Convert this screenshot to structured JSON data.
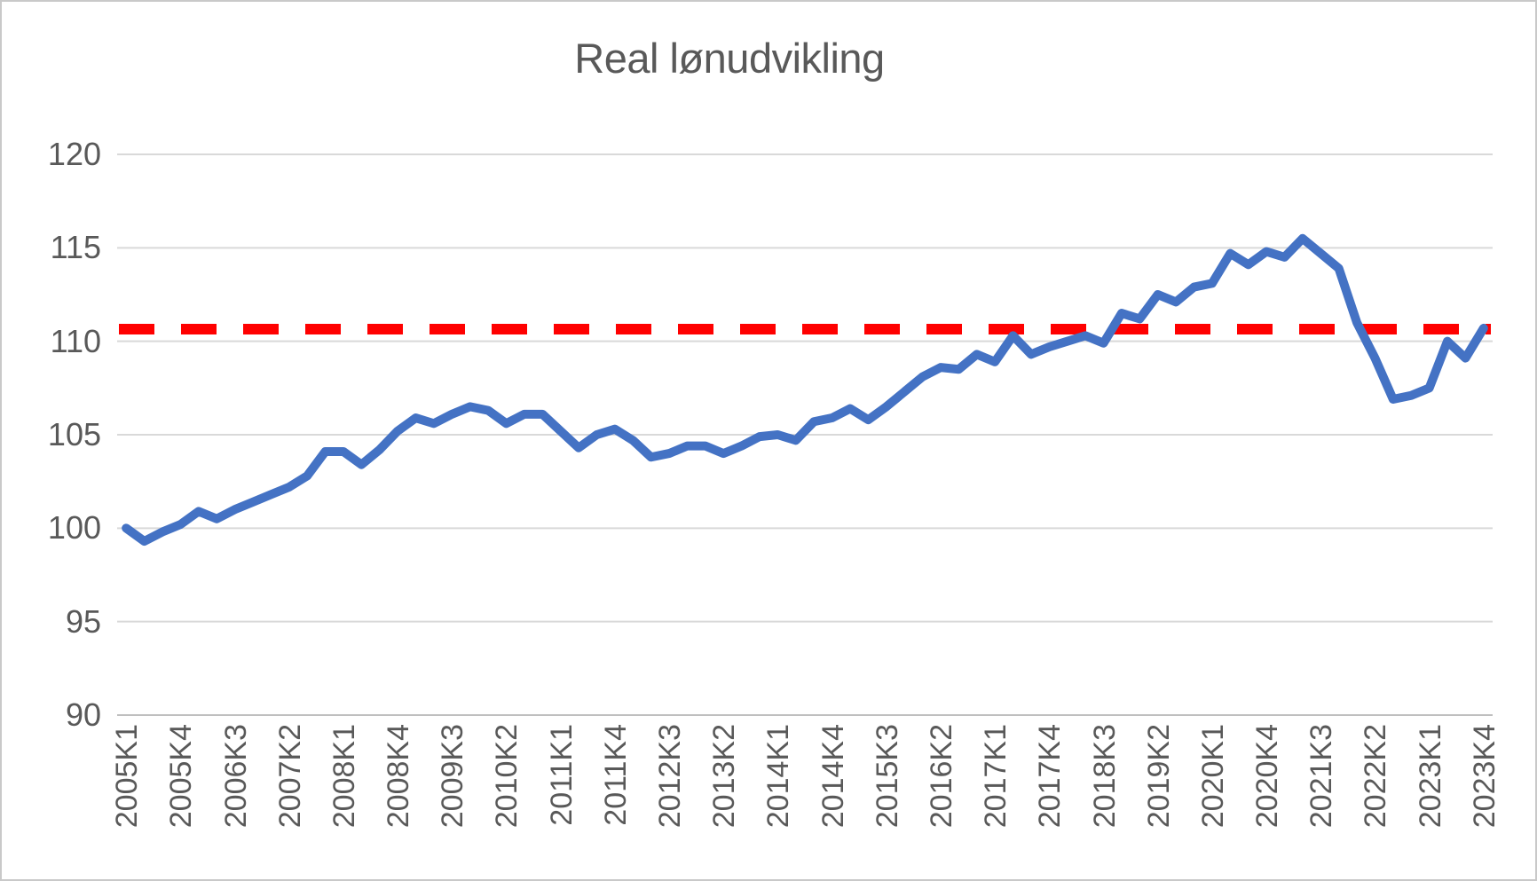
{
  "chart_data": {
    "type": "line",
    "title": "Real lønudvikling",
    "categories": [
      "2005K1",
      "2005K2",
      "2005K3",
      "2005K4",
      "2006K1",
      "2006K2",
      "2006K3",
      "2006K4",
      "2007K1",
      "2007K2",
      "2007K3",
      "2007K4",
      "2008K1",
      "2008K2",
      "2008K3",
      "2008K4",
      "2009K1",
      "2009K2",
      "2009K3",
      "2009K4",
      "2010K1",
      "2010K2",
      "2010K3",
      "2010K4",
      "2011K1",
      "2011K2",
      "2011K3",
      "2011K4",
      "2012K1",
      "2012K2",
      "2012K3",
      "2012K4",
      "2013K1",
      "2013K2",
      "2013K3",
      "2013K4",
      "2014K1",
      "2014K2",
      "2014K3",
      "2014K4",
      "2015K1",
      "2015K2",
      "2015K3",
      "2015K4",
      "2016K1",
      "2016K2",
      "2016K3",
      "2016K4",
      "2017K1",
      "2017K2",
      "2017K3",
      "2017K4",
      "2018K1",
      "2018K2",
      "2018K3",
      "2018K4",
      "2019K1",
      "2019K2",
      "2019K3",
      "2019K4",
      "2020K1",
      "2020K2",
      "2020K3",
      "2020K4",
      "2021K1",
      "2021K2",
      "2021K3",
      "2021K4",
      "2022K1",
      "2022K2",
      "2022K3",
      "2022K4",
      "2023K1",
      "2023K2",
      "2023K3",
      "2023K4"
    ],
    "series": [
      {
        "color": "#4472C4",
        "values": [
          100.0,
          99.3,
          99.8,
          100.2,
          100.9,
          100.5,
          101.0,
          101.4,
          101.8,
          102.2,
          102.8,
          104.1,
          104.1,
          103.4,
          104.2,
          105.2,
          105.9,
          105.6,
          106.1,
          106.5,
          106.3,
          105.6,
          106.1,
          106.1,
          105.2,
          104.3,
          105.0,
          105.3,
          104.7,
          103.8,
          104.0,
          104.4,
          104.4,
          104.0,
          104.4,
          104.9,
          105.0,
          104.7,
          105.7,
          105.9,
          106.4,
          105.8,
          106.5,
          107.3,
          108.1,
          108.6,
          108.5,
          109.3,
          108.9,
          110.3,
          109.3,
          109.7,
          110.0,
          110.3,
          109.9,
          111.5,
          111.2,
          112.5,
          112.1,
          112.9,
          113.1,
          114.7,
          114.1,
          114.8,
          114.5,
          115.5,
          114.7,
          113.9,
          111.0,
          109.1,
          106.9,
          107.1,
          107.5,
          110.0,
          109.1,
          110.7
        ]
      }
    ],
    "reference_line": {
      "value": 110.65,
      "color": "#FF0000",
      "style": "dashed"
    },
    "ylim": [
      90,
      120
    ],
    "y_ticks": [
      90,
      95,
      100,
      105,
      110,
      115,
      120
    ],
    "x_tick_every": 3,
    "grid": true,
    "legend": "none",
    "colors": {
      "grid": "#D9D9D9",
      "axis": "#BFBFBF",
      "text": "#595959",
      "background": "#FFFFFF"
    }
  }
}
